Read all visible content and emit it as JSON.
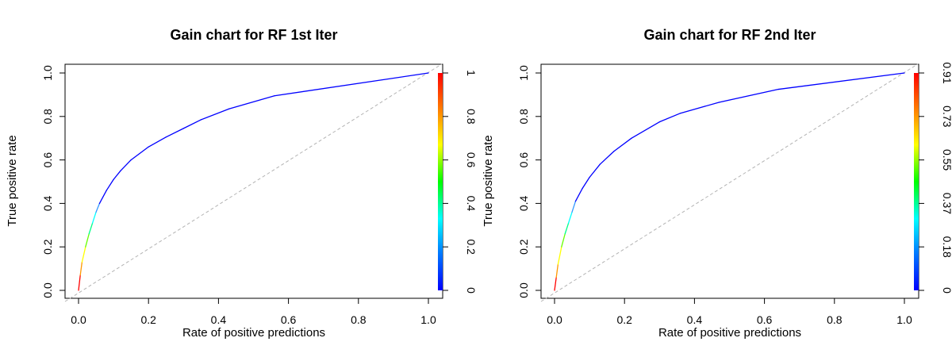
{
  "chart_data": [
    {
      "type": "line",
      "title": "Gain chart for RF 1st Iter",
      "xlabel": "Rate of positive predictions",
      "ylabel": "True positive rate",
      "xlim": [
        0,
        1
      ],
      "ylim": [
        0,
        1
      ],
      "x_ticks": [
        "0.0",
        "0.2",
        "0.4",
        "0.6",
        "0.8",
        "1.0"
      ],
      "y_ticks": [
        "0.0",
        "0.2",
        "0.4",
        "0.6",
        "0.8",
        "1.0"
      ],
      "colorbar_ticks": [
        "0",
        "0.2",
        "0.4",
        "0.6",
        "0.8",
        "1"
      ],
      "diagonal_color": "#b3b3b3",
      "series": [
        {
          "x": [
            0,
            0.005,
            0.01,
            0.02,
            0.03,
            0.04,
            0.05,
            0.06,
            0.08,
            0.1,
            0.12,
            0.15,
            0.2,
            0.25,
            0.3,
            0.35,
            0.43,
            0.56,
            1.0
          ],
          "y": [
            0,
            0.07,
            0.13,
            0.2,
            0.26,
            0.31,
            0.36,
            0.4,
            0.46,
            0.51,
            0.55,
            0.6,
            0.66,
            0.705,
            0.745,
            0.785,
            0.835,
            0.895,
            1.0
          ],
          "colors": [
            "#ff0000",
            "#ff9900",
            "#ffff00",
            "#66ff00",
            "#00ff88",
            "#00ffff",
            "#3399ff",
            "#0000ff",
            "#0000ff",
            "#0000ff",
            "#0000ff",
            "#0000ff",
            "#0000ff",
            "#0000ff",
            "#0000ff",
            "#0000ff",
            "#0000ff",
            "#0000ff",
            "#0000ff"
          ]
        }
      ]
    },
    {
      "type": "line",
      "title": "Gain chart for RF 2nd Iter",
      "xlabel": "Rate of positive predictions",
      "ylabel": "True positive rate",
      "xlim": [
        0,
        1
      ],
      "ylim": [
        0,
        1
      ],
      "x_ticks": [
        "0.0",
        "0.2",
        "0.4",
        "0.6",
        "0.8",
        "1.0"
      ],
      "y_ticks": [
        "0.0",
        "0.2",
        "0.4",
        "0.6",
        "0.8",
        "1.0"
      ],
      "colorbar_ticks": [
        "0",
        "0.18",
        "0.37",
        "0.55",
        "0.73",
        "0.91"
      ],
      "diagonal_color": "#b3b3b3",
      "series": [
        {
          "x": [
            0,
            0.005,
            0.01,
            0.02,
            0.03,
            0.04,
            0.05,
            0.06,
            0.08,
            0.1,
            0.13,
            0.17,
            0.22,
            0.3,
            0.36,
            0.47,
            0.64,
            1.0
          ],
          "y": [
            0,
            0.06,
            0.12,
            0.2,
            0.26,
            0.31,
            0.36,
            0.41,
            0.47,
            0.52,
            0.58,
            0.64,
            0.7,
            0.775,
            0.815,
            0.865,
            0.925,
            1.0
          ],
          "colors": [
            "#ff0000",
            "#ff9900",
            "#ffff00",
            "#66ff00",
            "#00ff88",
            "#00ffff",
            "#3399ff",
            "#0000ff",
            "#0000ff",
            "#0000ff",
            "#0000ff",
            "#0000ff",
            "#0000ff",
            "#0000ff",
            "#0000ff",
            "#0000ff",
            "#0000ff",
            "#0000ff"
          ]
        }
      ]
    }
  ]
}
